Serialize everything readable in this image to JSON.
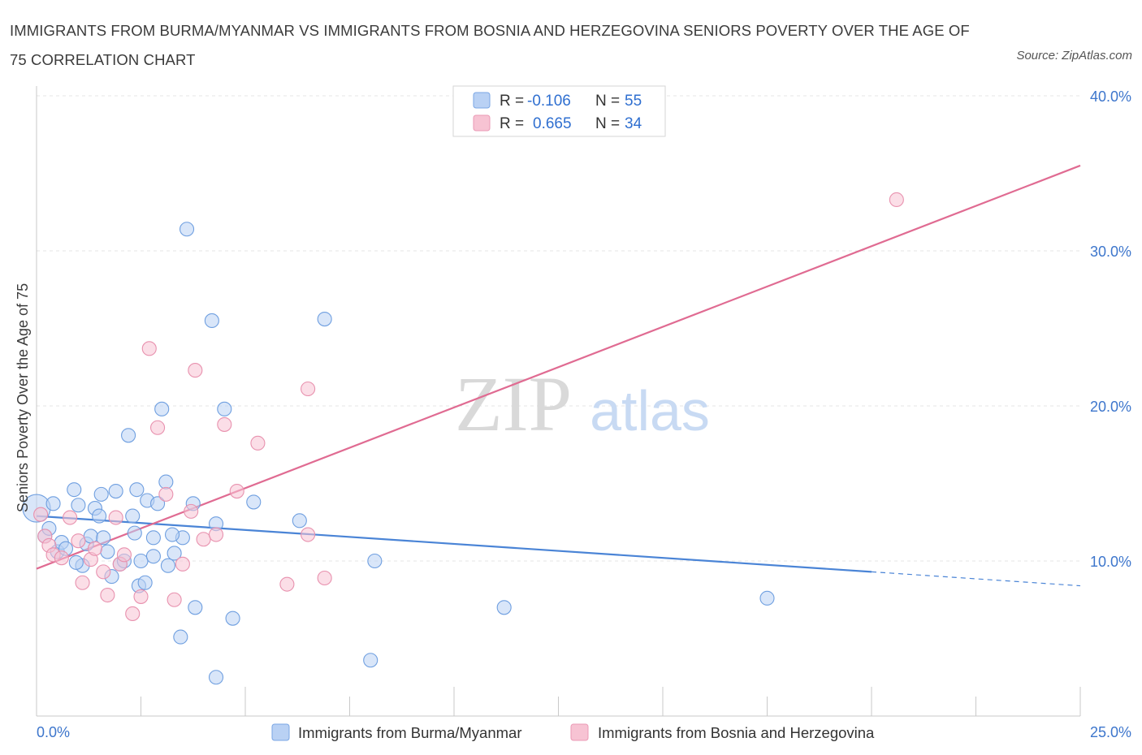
{
  "title": "IMMIGRANTS FROM BURMA/MYANMAR VS IMMIGRANTS FROM BOSNIA AND HERZEGOVINA SENIORS POVERTY OVER THE AGE OF 75 CORRELATION CHART",
  "source": "Source: ZipAtlas.com",
  "watermark": {
    "zip": "ZIP",
    "atlas": "atlas"
  },
  "colors": {
    "blue": "#4a84d6",
    "blue_fill": "#b9d1f4",
    "pink": "#e06b92",
    "pink_fill": "#f7c3d3",
    "axis_label": "#3d76cc"
  },
  "chart_data": {
    "type": "scatter",
    "title": "IMMIGRANTS FROM BURMA/MYANMAR VS IMMIGRANTS FROM BOSNIA AND HERZEGOVINA SENIORS POVERTY OVER THE AGE OF 75 CORRELATION CHART",
    "xlabel": "",
    "ylabel": "Seniors Poverty Over the Age of 75",
    "xlim": [
      0,
      25
    ],
    "ylim": [
      0,
      40
    ],
    "x_tick_labels": [
      "0.0%",
      "25.0%"
    ],
    "y_ticks": [
      10,
      20,
      30,
      40
    ],
    "y_tick_labels": [
      "10.0%",
      "20.0%",
      "30.0%",
      "40.0%"
    ],
    "grid": true,
    "legend_stats": [
      {
        "r_label": "R =",
        "r_value": "-0.106",
        "n_label": "N =",
        "n_value": "55"
      },
      {
        "r_label": "R =",
        "r_value": "0.665",
        "n_label": "N =",
        "n_value": "34"
      }
    ],
    "series": [
      {
        "name": "Immigrants from Burma/Myanmar",
        "color": "#4a84d6",
        "trend": {
          "x0": 0,
          "y0": 12.9,
          "x1": 20,
          "y1": 9.3,
          "dash_to_x": 25,
          "dash_to_y": 8.4
        },
        "points": [
          [
            0.0,
            13.4
          ],
          [
            0.2,
            11.6
          ],
          [
            0.3,
            12.1
          ],
          [
            0.4,
            13.7
          ],
          [
            0.5,
            10.6
          ],
          [
            0.6,
            11.2
          ],
          [
            0.7,
            10.8
          ],
          [
            0.9,
            14.6
          ],
          [
            1.0,
            13.6
          ],
          [
            1.1,
            9.7
          ],
          [
            1.2,
            11.1
          ],
          [
            1.3,
            11.6
          ],
          [
            1.4,
            13.4
          ],
          [
            1.5,
            12.9
          ],
          [
            1.55,
            14.3
          ],
          [
            1.7,
            10.6
          ],
          [
            1.8,
            9.0
          ],
          [
            1.9,
            14.5
          ],
          [
            2.0,
            9.8
          ],
          [
            2.1,
            10.0
          ],
          [
            2.2,
            18.1
          ],
          [
            2.3,
            12.9
          ],
          [
            2.35,
            11.8
          ],
          [
            2.4,
            14.6
          ],
          [
            2.45,
            8.4
          ],
          [
            2.5,
            10.0
          ],
          [
            2.6,
            8.6
          ],
          [
            2.65,
            13.9
          ],
          [
            2.8,
            10.3
          ],
          [
            2.9,
            13.7
          ],
          [
            3.0,
            19.8
          ],
          [
            3.1,
            15.1
          ],
          [
            3.15,
            9.7
          ],
          [
            3.3,
            10.5
          ],
          [
            3.5,
            11.5
          ],
          [
            3.6,
            31.4
          ],
          [
            3.75,
            13.7
          ],
          [
            3.8,
            7.0
          ],
          [
            4.2,
            25.5
          ],
          [
            4.3,
            2.5
          ],
          [
            4.5,
            19.8
          ],
          [
            4.7,
            6.3
          ],
          [
            5.2,
            13.8
          ],
          [
            6.3,
            12.6
          ],
          [
            6.9,
            25.6
          ],
          [
            8.0,
            3.6
          ],
          [
            8.1,
            10.0
          ],
          [
            11.2,
            7.0
          ],
          [
            17.5,
            7.6
          ],
          [
            3.25,
            11.7
          ],
          [
            0.95,
            9.9
          ],
          [
            1.6,
            11.5
          ],
          [
            3.45,
            5.1
          ],
          [
            2.8,
            11.5
          ],
          [
            4.3,
            12.4
          ]
        ]
      },
      {
        "name": "Immigrants from Bosnia and Herzegovina",
        "color": "#e06b92",
        "trend": {
          "x0": 0,
          "y0": 9.5,
          "x1": 25,
          "y1": 35.5
        },
        "points": [
          [
            0.1,
            13.0
          ],
          [
            0.2,
            11.6
          ],
          [
            0.3,
            11.0
          ],
          [
            0.4,
            10.4
          ],
          [
            0.6,
            10.2
          ],
          [
            0.8,
            12.8
          ],
          [
            1.0,
            11.3
          ],
          [
            1.1,
            8.6
          ],
          [
            1.3,
            10.1
          ],
          [
            1.4,
            10.8
          ],
          [
            1.6,
            9.3
          ],
          [
            1.7,
            7.8
          ],
          [
            1.9,
            12.8
          ],
          [
            2.0,
            9.8
          ],
          [
            2.1,
            10.4
          ],
          [
            2.3,
            6.6
          ],
          [
            2.5,
            7.7
          ],
          [
            2.7,
            23.7
          ],
          [
            2.9,
            18.6
          ],
          [
            3.1,
            14.3
          ],
          [
            3.3,
            7.5
          ],
          [
            3.5,
            9.8
          ],
          [
            3.7,
            13.2
          ],
          [
            3.8,
            22.3
          ],
          [
            4.0,
            11.4
          ],
          [
            4.3,
            11.7
          ],
          [
            4.5,
            18.8
          ],
          [
            4.8,
            14.5
          ],
          [
            5.3,
            17.6
          ],
          [
            6.0,
            8.5
          ],
          [
            6.5,
            11.7
          ],
          [
            6.5,
            21.1
          ],
          [
            6.9,
            8.9
          ],
          [
            20.6,
            33.3
          ]
        ]
      }
    ]
  }
}
